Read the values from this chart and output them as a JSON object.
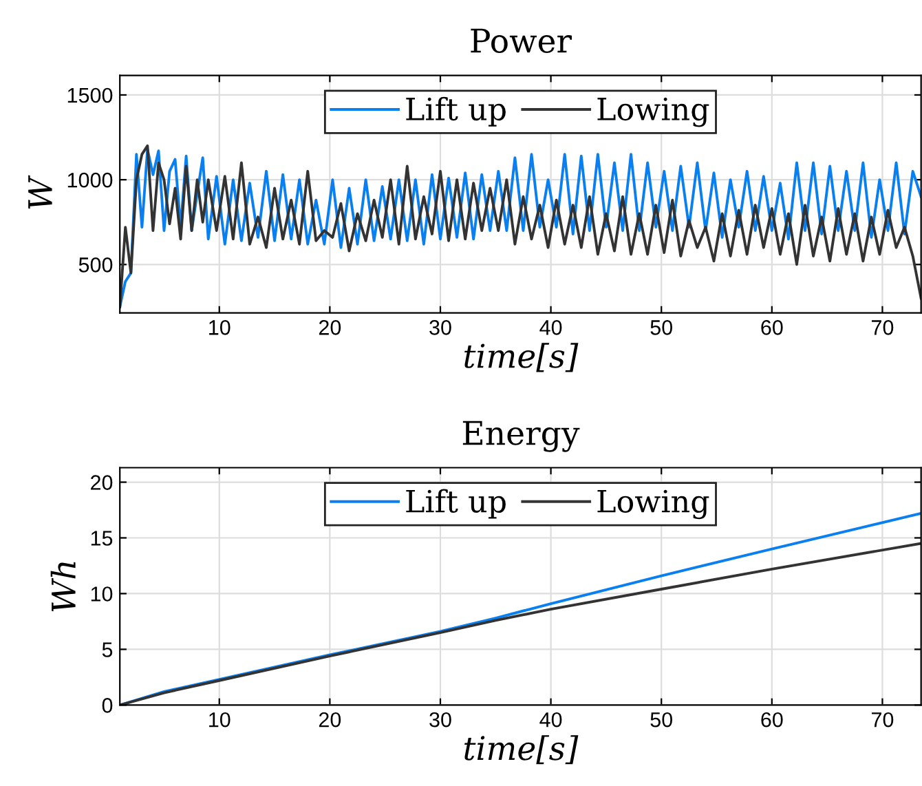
{
  "chart_data": [
    {
      "type": "line",
      "title": "Power",
      "xlabel": "time[s]",
      "ylabel": "W",
      "xlim": [
        1,
        73.5
      ],
      "ylim": [
        215,
        1615
      ],
      "xticks": [
        10,
        20,
        30,
        40,
        50,
        60,
        70
      ],
      "yticks": [
        500,
        1000,
        1500
      ],
      "grid": true,
      "legend": "top",
      "series": [
        {
          "name": "Lift up",
          "color": "#0a7ff0",
          "x": [
            1,
            1.5,
            2,
            2.5,
            3,
            3.5,
            4,
            4.5,
            5,
            5.5,
            6,
            6.5,
            7,
            7.5,
            8,
            8.5,
            9,
            9.75,
            10.5,
            11.25,
            12,
            12.75,
            13.5,
            14.25,
            15,
            15.75,
            16.5,
            17.25,
            18,
            18.75,
            19.5,
            20.25,
            21,
            21.75,
            22.5,
            23.25,
            24,
            24.75,
            25.5,
            26.25,
            27,
            27.75,
            28.5,
            29.25,
            30,
            30.75,
            31.5,
            32.25,
            33,
            33.75,
            34.5,
            35.25,
            36,
            36.75,
            37.5,
            38.25,
            39,
            39.75,
            40.5,
            41.25,
            42,
            42.75,
            43.5,
            44.25,
            45,
            45.75,
            46.5,
            47.25,
            48,
            48.75,
            49.5,
            50.25,
            51,
            51.75,
            52.5,
            53.25,
            54,
            54.75,
            55.5,
            56.25,
            57,
            57.75,
            58.5,
            59.25,
            60,
            60.75,
            61.5,
            62.25,
            63,
            63.75,
            64.5,
            65.25,
            66,
            66.75,
            67.5,
            68.25,
            69,
            69.75,
            70.5,
            71.25,
            72,
            72.75,
            73.5
          ],
          "values": [
            250,
            400,
            450,
            1150,
            720,
            1180,
            1030,
            1170,
            700,
            1050,
            1120,
            720,
            1140,
            700,
            920,
            1130,
            650,
            1020,
            620,
            1000,
            640,
            980,
            660,
            1050,
            640,
            1030,
            650,
            1000,
            620,
            880,
            620,
            1000,
            600,
            950,
            620,
            1000,
            640,
            960,
            650,
            1000,
            640,
            1000,
            620,
            1030,
            650,
            1010,
            660,
            1040,
            650,
            1030,
            700,
            1050,
            700,
            1130,
            700,
            1150,
            720,
            1000,
            720,
            1150,
            680,
            1140,
            700,
            1150,
            720,
            1100,
            700,
            1150,
            700,
            1100,
            720,
            1050,
            700,
            1080,
            720,
            1100,
            700,
            1040,
            660,
            1000,
            720,
            1050,
            700,
            1020,
            700,
            980,
            650,
            1100,
            700,
            1100,
            680,
            1080,
            700,
            1050,
            700,
            1100,
            660,
            1000,
            700,
            1100,
            680,
            1050,
            900
          ]
        },
        {
          "name": "Lowing",
          "color": "#333333",
          "x": [
            1,
            1.5,
            2,
            2.5,
            3,
            3.5,
            4,
            4.5,
            5,
            5.5,
            6,
            6.5,
            7,
            7.5,
            8,
            8.5,
            9,
            9.75,
            10.5,
            11.25,
            12,
            12.75,
            13.5,
            14.25,
            15,
            15.75,
            16.5,
            17.25,
            18,
            18.75,
            19.5,
            20.25,
            21,
            21.75,
            22.5,
            23.25,
            24,
            24.75,
            25.5,
            26.25,
            27,
            27.75,
            28.5,
            29.25,
            30,
            30.75,
            31.5,
            32.25,
            33,
            33.75,
            34.5,
            35.25,
            36,
            36.75,
            37.5,
            38.25,
            39,
            39.75,
            40.5,
            41.25,
            42,
            42.75,
            43.5,
            44.25,
            45,
            45.75,
            46.5,
            47.25,
            48,
            48.75,
            49.5,
            50.25,
            51,
            51.75,
            52.5,
            53.25,
            54,
            54.75,
            55.5,
            56.25,
            57,
            57.75,
            58.5,
            59.25,
            60,
            60.75,
            61.5,
            62.25,
            63,
            63.75,
            64.5,
            65.25,
            66,
            66.75,
            67.5,
            68.25,
            69,
            69.75,
            70.5,
            71.25,
            72,
            72.75,
            73.5
          ],
          "values": [
            250,
            720,
            450,
            1000,
            1150,
            1200,
            700,
            1100,
            1000,
            740,
            950,
            650,
            1080,
            700,
            1000,
            750,
            1000,
            700,
            1020,
            650,
            1100,
            620,
            780,
            600,
            950,
            650,
            880,
            620,
            1050,
            640,
            700,
            660,
            860,
            580,
            800,
            640,
            880,
            660,
            1000,
            620,
            1080,
            650,
            900,
            680,
            1050,
            640,
            1000,
            650,
            980,
            700,
            950,
            700,
            1000,
            620,
            900,
            650,
            850,
            600,
            880,
            620,
            850,
            600,
            900,
            560,
            800,
            580,
            900,
            560,
            800,
            560,
            850,
            570,
            880,
            550,
            760,
            600,
            720,
            520,
            800,
            550,
            820,
            560,
            850,
            600,
            830,
            560,
            800,
            500,
            850,
            550,
            780,
            520,
            830,
            560,
            800,
            520,
            780,
            560,
            820,
            600,
            720,
            550,
            300
          ]
        }
      ]
    },
    {
      "type": "line",
      "title": "Energy",
      "xlabel": "time[s]",
      "ylabel": "Wh",
      "xlim": [
        1,
        73.5
      ],
      "ylim": [
        0,
        21.3
      ],
      "xticks": [
        10,
        20,
        30,
        40,
        50,
        60,
        70
      ],
      "yticks": [
        0,
        5,
        10,
        15,
        20
      ],
      "grid": true,
      "legend": "top",
      "series": [
        {
          "name": "Lift up",
          "color": "#0a7ff0",
          "x": [
            1,
            5,
            10,
            20,
            30,
            35,
            40,
            50,
            60,
            73.5
          ],
          "values": [
            0,
            1.2,
            2.3,
            4.5,
            6.6,
            7.8,
            9.1,
            11.6,
            14.0,
            17.2
          ]
        },
        {
          "name": "Lowing",
          "color": "#333333",
          "x": [
            1,
            5,
            10,
            20,
            30,
            35,
            40,
            50,
            60,
            73.5
          ],
          "values": [
            0,
            1.1,
            2.2,
            4.4,
            6.5,
            7.6,
            8.6,
            10.4,
            12.2,
            14.5
          ]
        }
      ]
    }
  ]
}
